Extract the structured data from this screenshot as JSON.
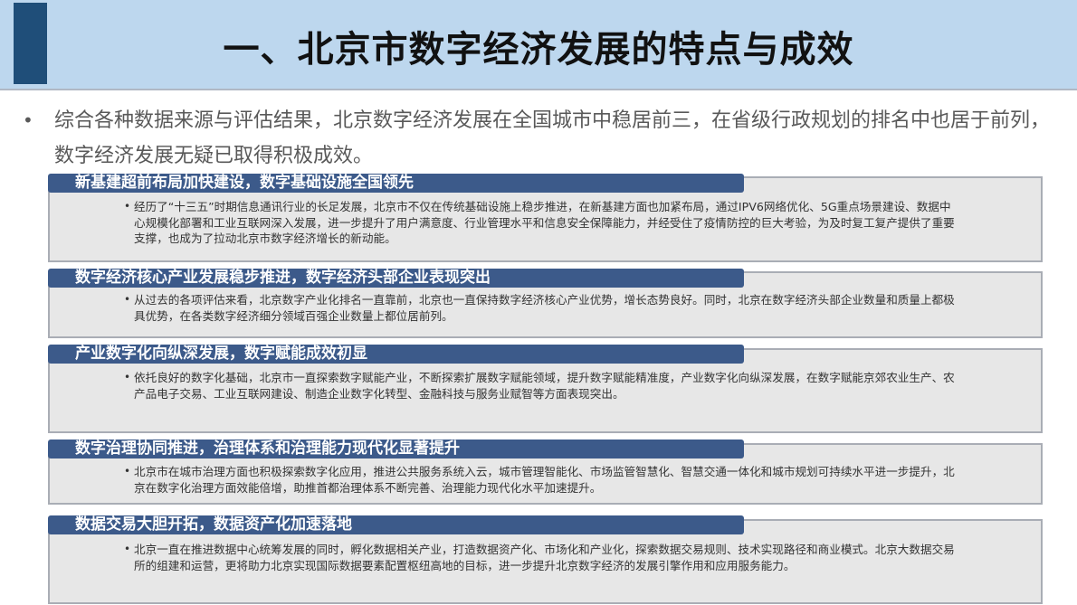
{
  "title": "一、北京市数字经济发展的特点与成效",
  "intro": "综合各种数据来源与评估结果，北京数字经济发展在全国城市中稳居前三，在省级行政规划的排名中也居于前列，数字经济发展无疑已取得积极成效。",
  "sections": [
    {
      "heading": "新基建超前布局加快建设，数字基础设施全国领先",
      "text": "经历了“十三五”时期信息通讯行业的长足发展，北京市不仅在传统基础设施上稳步推进，在新基建方面也加紧布局，通过IPV6网络优化、5G重点场景建设、数据中心规模化部署和工业互联网深入发展，进一步提升了用户满意度、行业管理水平和信息安全保障能力，并经受住了疫情防控的巨大考验，为及时复工复产提供了重要支撑，也成为了拉动北京市数字经济增长的新动能。"
    },
    {
      "heading": "数字经济核心产业发展稳步推进，数字经济头部企业表现突出",
      "text": "从过去的各项评估来看，北京数字产业化排名一直靠前，北京也一直保持数字经济核心产业优势，增长态势良好。同时，北京在数字经济头部企业数量和质量上都极具优势，在各类数字经济细分领域百强企业数量上都位居前列。"
    },
    {
      "heading": "产业数字化向纵深发展，数字赋能成效初显",
      "text": "依托良好的数字化基础，北京市一直探索数字赋能产业，不断探索扩展数字赋能领域，提升数字赋能精准度，产业数字化向纵深发展，在数字赋能京郊农业生产、农产品电子交易、工业互联网建设、制造企业数字化转型、金融科技与服务业赋智等方面表现突出。"
    },
    {
      "heading": "数字治理协同推进，治理体系和治理能力现代化显著提升",
      "text": "北京市在城市治理方面也积极探索数字化应用，推进公共服务系统入云，城市管理智能化、市场监管智慧化、智慧交通一体化和城市规划可持续水平进一步提升，北京在数字化治理方面效能倍增，助推首都治理体系不断完善、治理能力现代化水平加速提升。"
    },
    {
      "heading": "数据交易大胆开拓，数据资产化加速落地",
      "text": "北京一直在推进数据中心统筹发展的同时，孵化数据相关产业，打造数据资产化、市场化和产业化，探索数据交易规则、技术实现路径和商业模式。北京大数据交易所的组建和运营，更将助力北京实现国际数据要素配置枢纽高地的目标，进一步提升北京数字经济的发展引擎作用和应用服务能力。"
    }
  ]
}
